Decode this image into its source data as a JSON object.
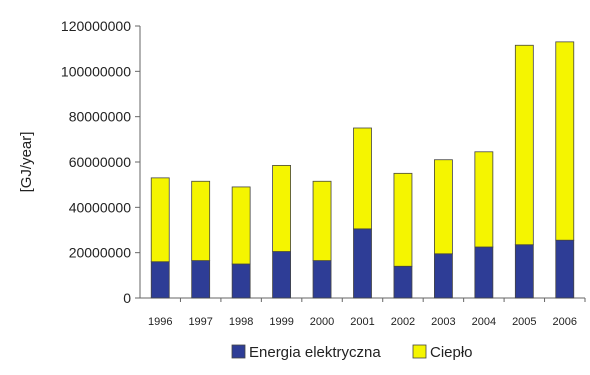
{
  "chart_data": {
    "type": "bar",
    "stacked": true,
    "categories": [
      "1996",
      "1997",
      "1998",
      "1999",
      "2000",
      "2001",
      "2002",
      "2003",
      "2004",
      "2005",
      "2006"
    ],
    "series": [
      {
        "name": "Energia elektryczna",
        "color": "#2e3d96",
        "values": [
          16000000,
          16500000,
          15000000,
          20500000,
          16500000,
          30500000,
          14000000,
          19500000,
          22500000,
          23500000,
          25500000
        ]
      },
      {
        "name": "Ciepło",
        "color": "#f5f500",
        "values": [
          37000000,
          35000000,
          34000000,
          38000000,
          35000000,
          44500000,
          41000000,
          41500000,
          42000000,
          88000000,
          87500000
        ]
      }
    ],
    "ylabel": "[GJ/year]",
    "xlabel": "",
    "ylim": [
      0,
      120000000
    ],
    "yticks": [
      "0",
      "20000000",
      "40000000",
      "60000000",
      "80000000",
      "100000000",
      "120000000"
    ],
    "legend_position": "bottom"
  }
}
